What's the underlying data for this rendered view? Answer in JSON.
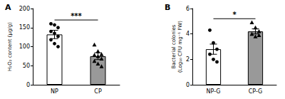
{
  "chart_data": [
    {
      "type": "bar",
      "title": "A",
      "y_label": "H₂O₂ content (μg/g)",
      "categories": [
        "NP",
        "CP"
      ],
      "values": [
        132,
        75
      ],
      "errors": [
        11,
        9
      ],
      "colors": [
        "#ffffff",
        "#999999"
      ],
      "points": [
        {
          "marker": "circle",
          "values": [
            160,
            157,
            150,
            140,
            135,
            127,
            118,
            108,
            100
          ]
        },
        {
          "marker": "triangle",
          "values": [
            105,
            88,
            80,
            78,
            75,
            68,
            62,
            55,
            48
          ]
        }
      ],
      "annotation": "***",
      "ylim": [
        0,
        200
      ],
      "yticks": [
        0,
        50,
        100,
        150,
        200
      ]
    },
    {
      "type": "bar",
      "title": "B",
      "y_label": "Bacterial colonies\n(Log₁₀ CFU mg⁻¹ FW)",
      "categories": [
        "NP-G",
        "CP-G"
      ],
      "values": [
        2.8,
        4.2
      ],
      "errors": [
        0.4,
        0.2
      ],
      "colors": [
        "#ffffff",
        "#999999"
      ],
      "points": [
        {
          "marker": "circle",
          "values": [
            4.3,
            3.3,
            2.8,
            2.4,
            2.0,
            1.8
          ]
        },
        {
          "marker": "triangle",
          "values": [
            4.9,
            4.5,
            4.2,
            4.0,
            3.8,
            3.9
          ]
        }
      ],
      "annotation": "*",
      "ylim": [
        0,
        6
      ],
      "yticks": [
        0,
        2,
        4,
        6
      ]
    }
  ]
}
